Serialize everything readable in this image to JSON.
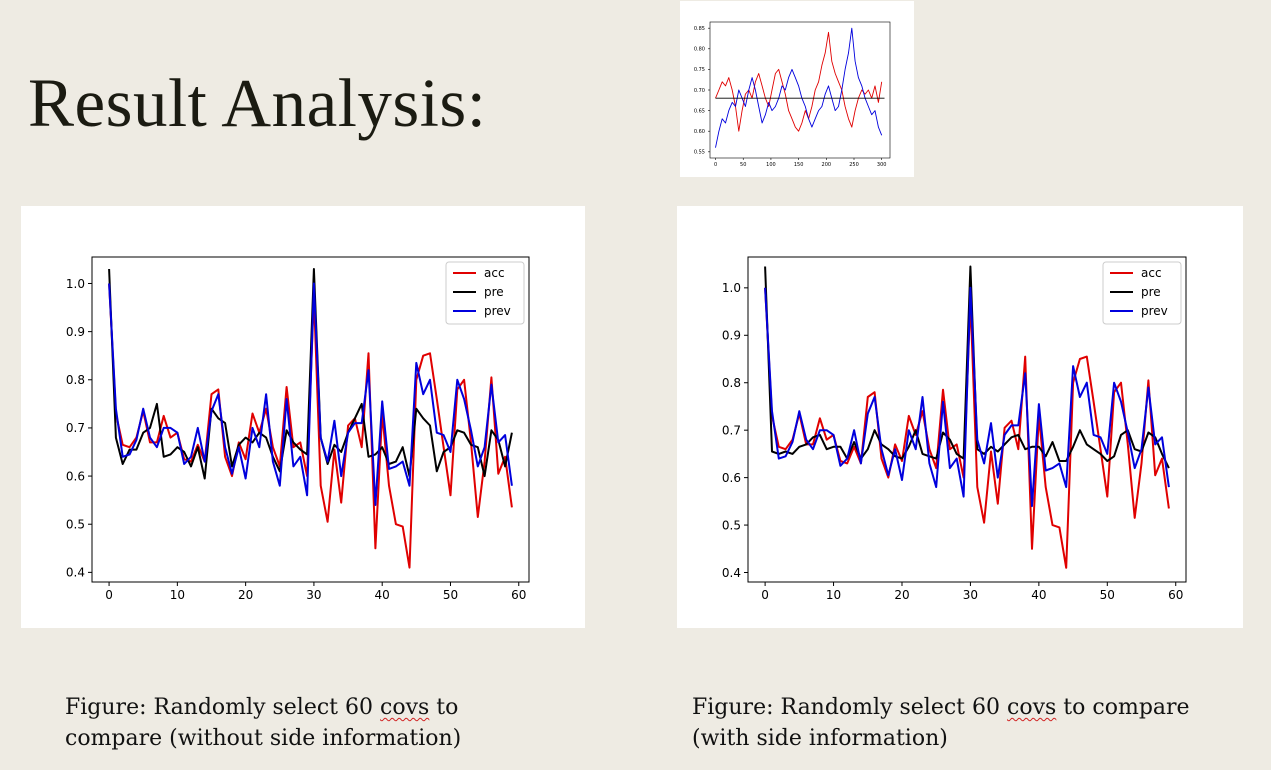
{
  "slide": {
    "title": "Result Analysis:",
    "captions": [
      {
        "line1_pre": "Figure: Randomly select 60 ",
        "line1_word": "covs",
        "line1_post": " to",
        "line2": "compare (without side information)"
      },
      {
        "line1_pre": "Figure: Randomly select 60 ",
        "line1_word": "covs",
        "line1_post": " to compare",
        "line2": "(with side information)"
      }
    ]
  },
  "colors": {
    "acc": "#e00000",
    "pre": "#000000",
    "prev": "#0000dd",
    "background": "#eeebe3"
  },
  "chart_data": [
    {
      "type": "line",
      "title": "",
      "xlabel": "",
      "ylabel": "",
      "xlim": [
        -2.5,
        61.5
      ],
      "ylim": [
        0.38,
        1.055
      ],
      "xticks": [
        0,
        10,
        20,
        30,
        40,
        50,
        60
      ],
      "yticks": [
        0.4,
        0.5,
        0.6,
        0.7,
        0.8,
        0.9,
        1.0
      ],
      "ytick_labels": [
        "0.4",
        "0.5",
        "0.6",
        "0.7",
        "0.8",
        "0.9",
        "1.0"
      ],
      "legend": "top-right",
      "series": [
        {
          "name": "acc",
          "color": "#e00000",
          "values": [
            1.0,
            0.73,
            0.665,
            0.66,
            0.68,
            0.735,
            0.67,
            0.67,
            0.725,
            0.68,
            0.69,
            0.635,
            0.63,
            0.665,
            0.63,
            0.77,
            0.78,
            0.64,
            0.6,
            0.67,
            0.635,
            0.73,
            0.69,
            0.74,
            0.66,
            0.62,
            0.785,
            0.66,
            0.67,
            0.6,
            0.975,
            0.58,
            0.505,
            0.655,
            0.545,
            0.705,
            0.72,
            0.66,
            0.855,
            0.45,
            0.73,
            0.58,
            0.5,
            0.495,
            0.41,
            0.8,
            0.85,
            0.855,
            0.76,
            0.66,
            0.56,
            0.78,
            0.8,
            0.67,
            0.515,
            0.63,
            0.805,
            0.605,
            0.64,
            0.535
          ]
        },
        {
          "name": "pre",
          "color": "#000000",
          "values": [
            1.03,
            0.68,
            0.625,
            0.655,
            0.655,
            0.69,
            0.7,
            0.75,
            0.64,
            0.645,
            0.66,
            0.65,
            0.62,
            0.66,
            0.595,
            0.74,
            0.72,
            0.71,
            0.62,
            0.665,
            0.68,
            0.67,
            0.69,
            0.68,
            0.64,
            0.61,
            0.695,
            0.67,
            0.655,
            0.645,
            1.03,
            0.68,
            0.625,
            0.665,
            0.65,
            0.69,
            0.72,
            0.75,
            0.64,
            0.645,
            0.66,
            0.625,
            0.63,
            0.66,
            0.6,
            0.74,
            0.72,
            0.705,
            0.61,
            0.65,
            0.66,
            0.695,
            0.69,
            0.665,
            0.66,
            0.6,
            0.695,
            0.675,
            0.62,
            0.69
          ]
        },
        {
          "name": "prev",
          "color": "#0000dd",
          "values": [
            1.0,
            0.74,
            0.64,
            0.645,
            0.675,
            0.74,
            0.68,
            0.66,
            0.7,
            0.7,
            0.69,
            0.625,
            0.64,
            0.7,
            0.63,
            0.735,
            0.77,
            0.66,
            0.605,
            0.66,
            0.595,
            0.7,
            0.66,
            0.77,
            0.63,
            0.58,
            0.76,
            0.62,
            0.64,
            0.56,
            1.0,
            0.68,
            0.63,
            0.715,
            0.6,
            0.69,
            0.71,
            0.71,
            0.82,
            0.54,
            0.755,
            0.615,
            0.62,
            0.63,
            0.58,
            0.835,
            0.77,
            0.8,
            0.69,
            0.685,
            0.65,
            0.8,
            0.76,
            0.695,
            0.62,
            0.66,
            0.79,
            0.67,
            0.685,
            0.58
          ]
        }
      ]
    },
    {
      "type": "line",
      "title": "",
      "xlabel": "",
      "ylabel": "",
      "xlim": [
        -2.5,
        61.5
      ],
      "ylim": [
        0.38,
        1.065
      ],
      "xticks": [
        0,
        10,
        20,
        30,
        40,
        50,
        60
      ],
      "yticks": [
        0.4,
        0.5,
        0.6,
        0.7,
        0.8,
        0.9,
        1.0
      ],
      "ytick_labels": [
        "0.4",
        "0.5",
        "0.6",
        "0.7",
        "0.8",
        "0.9",
        "1.0"
      ],
      "legend": "top-right",
      "series": [
        {
          "name": "acc",
          "color": "#e00000",
          "values": [
            1.0,
            0.73,
            0.665,
            0.66,
            0.68,
            0.735,
            0.67,
            0.67,
            0.725,
            0.68,
            0.69,
            0.635,
            0.63,
            0.665,
            0.63,
            0.77,
            0.78,
            0.64,
            0.6,
            0.67,
            0.635,
            0.73,
            0.69,
            0.74,
            0.66,
            0.62,
            0.785,
            0.66,
            0.67,
            0.6,
            0.975,
            0.58,
            0.505,
            0.655,
            0.545,
            0.705,
            0.72,
            0.66,
            0.855,
            0.45,
            0.73,
            0.58,
            0.5,
            0.495,
            0.41,
            0.8,
            0.85,
            0.855,
            0.76,
            0.66,
            0.56,
            0.78,
            0.8,
            0.67,
            0.515,
            0.63,
            0.805,
            0.605,
            0.64,
            0.535
          ]
        },
        {
          "name": "pre",
          "color": "#000000",
          "values": [
            1.045,
            0.655,
            0.65,
            0.655,
            0.65,
            0.665,
            0.67,
            0.685,
            0.69,
            0.66,
            0.665,
            0.665,
            0.64,
            0.675,
            0.64,
            0.66,
            0.7,
            0.67,
            0.66,
            0.645,
            0.64,
            0.665,
            0.7,
            0.65,
            0.645,
            0.64,
            0.695,
            0.68,
            0.65,
            0.64,
            1.045,
            0.66,
            0.65,
            0.665,
            0.655,
            0.67,
            0.685,
            0.69,
            0.66,
            0.665,
            0.665,
            0.645,
            0.675,
            0.635,
            0.635,
            0.665,
            0.7,
            0.67,
            0.66,
            0.65,
            0.635,
            0.645,
            0.69,
            0.7,
            0.66,
            0.655,
            0.695,
            0.685,
            0.65,
            0.62
          ]
        },
        {
          "name": "prev",
          "color": "#0000dd",
          "values": [
            1.0,
            0.74,
            0.64,
            0.645,
            0.675,
            0.74,
            0.68,
            0.66,
            0.7,
            0.7,
            0.69,
            0.625,
            0.64,
            0.7,
            0.63,
            0.735,
            0.77,
            0.66,
            0.605,
            0.66,
            0.595,
            0.7,
            0.66,
            0.77,
            0.63,
            0.58,
            0.76,
            0.62,
            0.64,
            0.56,
            1.0,
            0.68,
            0.63,
            0.715,
            0.6,
            0.69,
            0.71,
            0.71,
            0.82,
            0.54,
            0.755,
            0.615,
            0.62,
            0.63,
            0.58,
            0.835,
            0.77,
            0.8,
            0.69,
            0.685,
            0.65,
            0.8,
            0.76,
            0.695,
            0.62,
            0.66,
            0.79,
            0.67,
            0.685,
            0.58
          ]
        }
      ]
    },
    {
      "type": "line",
      "title": "",
      "xlabel": "",
      "ylabel": "",
      "xlim": [
        -10,
        315
      ],
      "ylim": [
        0.535,
        0.865
      ],
      "xticks": [
        0,
        50,
        100,
        150,
        200,
        250,
        300
      ],
      "yticks": [
        0.55,
        0.6,
        0.65,
        0.7,
        0.75,
        0.8,
        0.85
      ],
      "ytick_labels": [
        "0.55",
        "0.60",
        "0.65",
        "0.70",
        "0.75",
        "0.80",
        "0.85"
      ],
      "legend": "none",
      "series": [
        {
          "color": "#e00000",
          "points": [
            [
              0,
              0.68
            ],
            [
              6,
              0.7
            ],
            [
              12,
              0.72
            ],
            [
              18,
              0.71
            ],
            [
              24,
              0.73
            ],
            [
              30,
              0.7
            ],
            [
              36,
              0.66
            ],
            [
              42,
              0.6
            ],
            [
              48,
              0.65
            ],
            [
              54,
              0.69
            ],
            [
              60,
              0.7
            ],
            [
              66,
              0.68
            ],
            [
              72,
              0.72
            ],
            [
              78,
              0.74
            ],
            [
              84,
              0.71
            ],
            [
              90,
              0.68
            ],
            [
              96,
              0.66
            ],
            [
              102,
              0.7
            ],
            [
              108,
              0.74
            ],
            [
              114,
              0.75
            ],
            [
              120,
              0.72
            ],
            [
              126,
              0.69
            ],
            [
              132,
              0.65
            ],
            [
              138,
              0.63
            ],
            [
              144,
              0.61
            ],
            [
              150,
              0.6
            ],
            [
              156,
              0.62
            ],
            [
              162,
              0.65
            ],
            [
              168,
              0.63
            ],
            [
              174,
              0.66
            ],
            [
              180,
              0.7
            ],
            [
              186,
              0.72
            ],
            [
              192,
              0.76
            ],
            [
              198,
              0.79
            ],
            [
              204,
              0.84
            ],
            [
              210,
              0.77
            ],
            [
              216,
              0.74
            ],
            [
              222,
              0.72
            ],
            [
              228,
              0.7
            ],
            [
              234,
              0.66
            ],
            [
              240,
              0.63
            ],
            [
              246,
              0.61
            ],
            [
              252,
              0.65
            ],
            [
              258,
              0.68
            ],
            [
              264,
              0.7
            ],
            [
              270,
              0.69
            ],
            [
              276,
              0.7
            ],
            [
              282,
              0.68
            ],
            [
              288,
              0.71
            ],
            [
              294,
              0.67
            ],
            [
              300,
              0.72
            ]
          ]
        },
        {
          "color": "#0000dd",
          "points": [
            [
              0,
              0.56
            ],
            [
              6,
              0.6
            ],
            [
              12,
              0.63
            ],
            [
              18,
              0.62
            ],
            [
              24,
              0.65
            ],
            [
              30,
              0.67
            ],
            [
              36,
              0.66
            ],
            [
              42,
              0.7
            ],
            [
              48,
              0.68
            ],
            [
              54,
              0.66
            ],
            [
              60,
              0.7
            ],
            [
              66,
              0.73
            ],
            [
              72,
              0.7
            ],
            [
              78,
              0.66
            ],
            [
              84,
              0.62
            ],
            [
              90,
              0.64
            ],
            [
              96,
              0.67
            ],
            [
              102,
              0.65
            ],
            [
              108,
              0.66
            ],
            [
              114,
              0.68
            ],
            [
              120,
              0.71
            ],
            [
              126,
              0.7
            ],
            [
              132,
              0.73
            ],
            [
              138,
              0.75
            ],
            [
              144,
              0.73
            ],
            [
              150,
              0.71
            ],
            [
              156,
              0.68
            ],
            [
              162,
              0.66
            ],
            [
              168,
              0.63
            ],
            [
              174,
              0.61
            ],
            [
              180,
              0.63
            ],
            [
              186,
              0.65
            ],
            [
              192,
              0.66
            ],
            [
              198,
              0.69
            ],
            [
              204,
              0.71
            ],
            [
              210,
              0.68
            ],
            [
              216,
              0.65
            ],
            [
              222,
              0.66
            ],
            [
              228,
              0.7
            ],
            [
              234,
              0.75
            ],
            [
              240,
              0.79
            ],
            [
              246,
              0.85
            ],
            [
              252,
              0.77
            ],
            [
              258,
              0.73
            ],
            [
              264,
              0.71
            ],
            [
              270,
              0.68
            ],
            [
              276,
              0.66
            ],
            [
              282,
              0.64
            ],
            [
              288,
              0.65
            ],
            [
              294,
              0.61
            ],
            [
              300,
              0.59
            ]
          ]
        },
        {
          "color": "#000000",
          "points": [
            [
              0,
              0.68
            ],
            [
              305,
              0.68
            ]
          ]
        }
      ]
    }
  ]
}
